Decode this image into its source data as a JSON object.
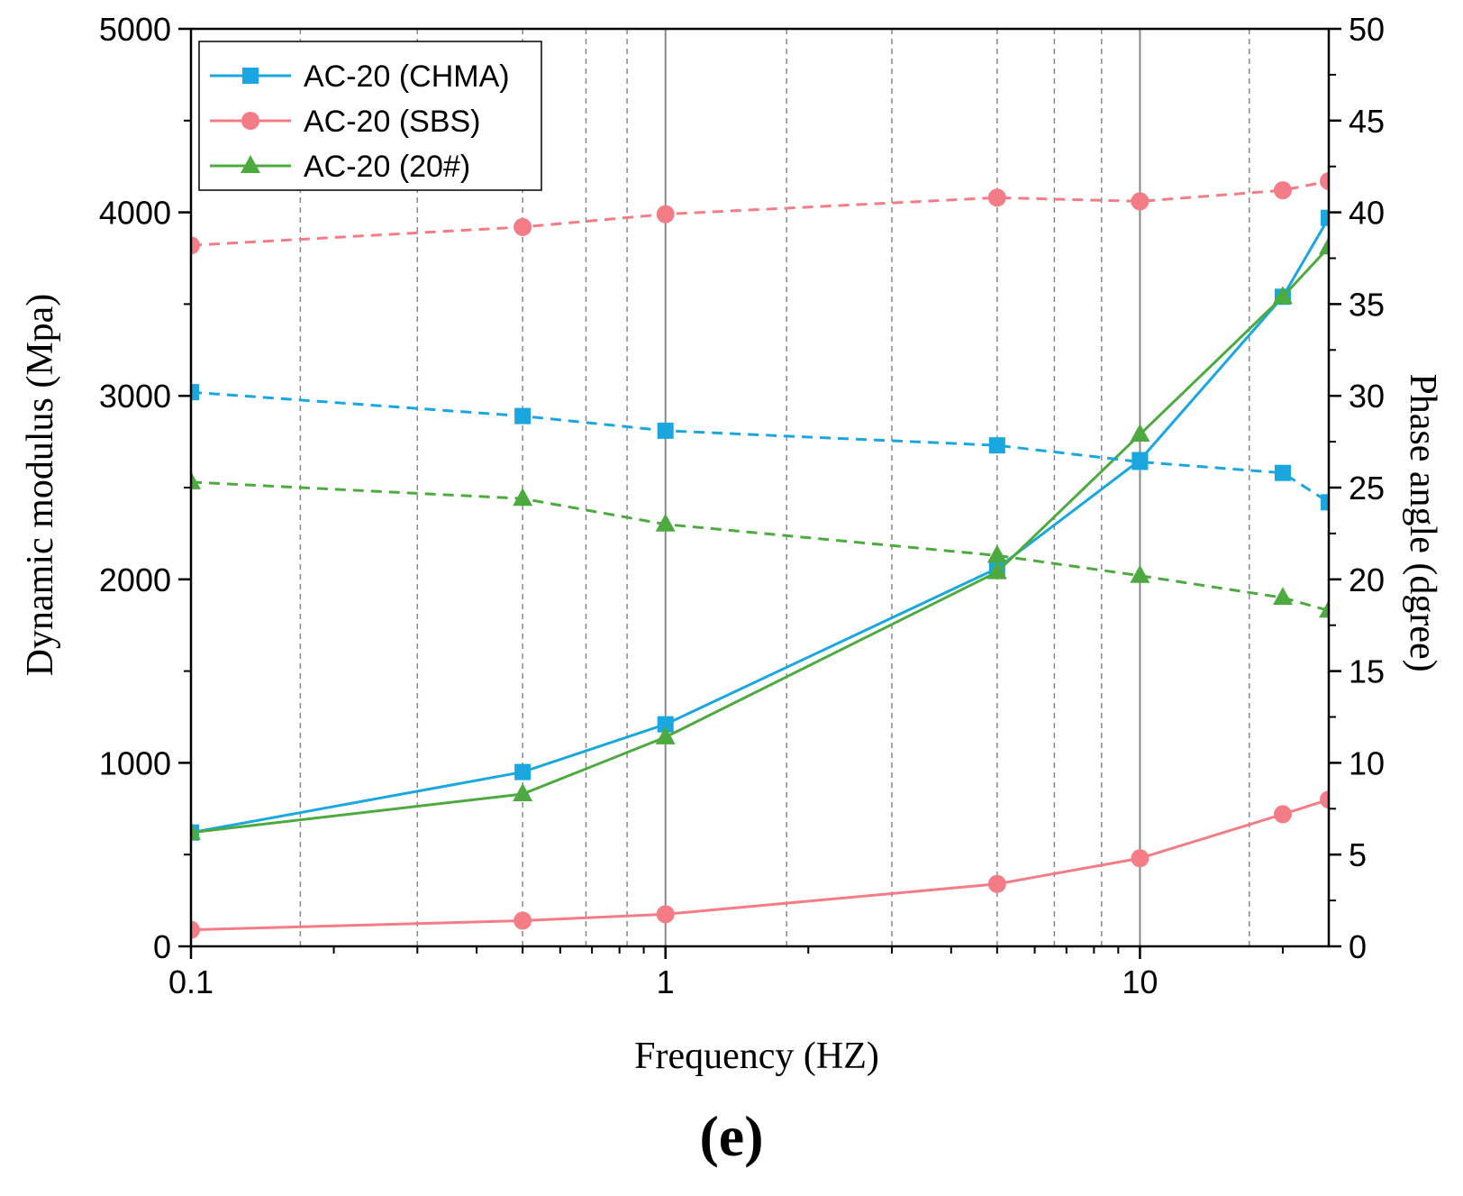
{
  "chart_data": {
    "type": "line",
    "x_scale": "log",
    "xlabel": "Frequency (HZ)",
    "ylabel": "Dynamic modulus (Mpa)",
    "y2label": "Phase angle (dgree)",
    "panel_label": "(e)",
    "xlim": [
      0.1,
      25
    ],
    "ylim": [
      0,
      5000
    ],
    "y2lim": [
      0,
      50
    ],
    "x_ticks": [
      0.1,
      1,
      10
    ],
    "x_tick_labels": [
      "0.1",
      "1",
      "10"
    ],
    "y_ticks": [
      0,
      1000,
      2000,
      3000,
      4000,
      5000
    ],
    "y_tick_labels": [
      "0",
      "1000",
      "2000",
      "3000",
      "4000",
      "5000"
    ],
    "y2_ticks": [
      0,
      5,
      10,
      15,
      20,
      25,
      30,
      35,
      40,
      45,
      50
    ],
    "y2_tick_labels": [
      "0",
      "5",
      "10",
      "15",
      "20",
      "25",
      "30",
      "35",
      "40",
      "45",
      "50"
    ],
    "x_gridlines_solid": [
      1,
      10
    ],
    "x_gridlines_dashed": [
      0.17,
      0.3,
      0.5,
      0.68,
      0.83,
      1.8,
      3,
      5,
      6.6,
      8.3,
      17
    ],
    "x": [
      0.1,
      0.5,
      1,
      5,
      10,
      20,
      25
    ],
    "series": [
      {
        "name": "AC-20 (CHMA)",
        "color": "#1aa7e0",
        "marker": "square",
        "axis": "left",
        "style": "solid",
        "values": [
          620,
          950,
          1210,
          2060,
          2650,
          3540,
          3970
        ]
      },
      {
        "name": "AC-20 (SBS)",
        "color": "#f47c86",
        "marker": "circle",
        "axis": "left",
        "style": "solid",
        "values": [
          90,
          140,
          175,
          340,
          480,
          720,
          800
        ]
      },
      {
        "name": "AC-20 (20#)",
        "color": "#4daa3f",
        "marker": "triangle",
        "axis": "left",
        "style": "solid",
        "values": [
          620,
          830,
          1140,
          2040,
          2790,
          3540,
          3810
        ]
      },
      {
        "name": "AC-20 (CHMA) phase angle",
        "color": "#1aa7e0",
        "marker": "square",
        "axis": "right",
        "style": "dashed",
        "values": [
          30.2,
          28.9,
          28.1,
          27.3,
          26.4,
          25.8,
          24.2
        ]
      },
      {
        "name": "AC-20 (SBS) phase angle",
        "color": "#f47c86",
        "marker": "circle",
        "axis": "right",
        "style": "dashed",
        "values": [
          38.2,
          39.2,
          39.9,
          40.8,
          40.6,
          41.2,
          41.7
        ]
      },
      {
        "name": "AC-20 (20#) phase angle",
        "color": "#4daa3f",
        "marker": "triangle",
        "axis": "right",
        "style": "dashed",
        "values": [
          25.3,
          24.4,
          23.0,
          21.3,
          20.2,
          19.0,
          18.3
        ]
      }
    ],
    "legend": {
      "position": "top-left",
      "entries": [
        "AC-20 (CHMA)",
        "AC-20 (SBS)",
        "AC-20 (20#)"
      ]
    }
  }
}
